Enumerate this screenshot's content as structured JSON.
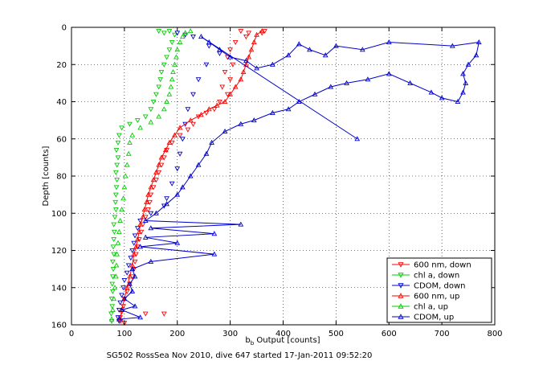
{
  "chart_data": {
    "type": "scatter",
    "xlabel_main": "b",
    "xlabel_sub": "b",
    "xlabel_rest": " Output [counts]",
    "ylabel": "Depth [counts]",
    "caption": "SG502 RossSea Nov 2010, dive 647 started 17-Jan-2011 09:52:20",
    "xlim": [
      0,
      800
    ],
    "ylim": [
      0,
      160
    ],
    "y_reversed": true,
    "xticks": [
      0,
      100,
      200,
      300,
      400,
      500,
      600,
      700,
      800
    ],
    "yticks": [
      0,
      20,
      40,
      60,
      80,
      100,
      120,
      140,
      160
    ],
    "grid": true,
    "legend_position": "bottom-right",
    "series": [
      {
        "name": "600 nm, down",
        "color": "#ff0000",
        "marker": "triangle-down",
        "line": false,
        "points": [
          [
            320,
            2
          ],
          [
            335,
            3
          ],
          [
            360,
            3
          ],
          [
            365,
            2
          ],
          [
            330,
            5
          ],
          [
            310,
            8
          ],
          [
            300,
            12
          ],
          [
            295,
            16
          ],
          [
            305,
            20
          ],
          [
            290,
            24
          ],
          [
            300,
            28
          ],
          [
            285,
            32
          ],
          [
            295,
            36
          ],
          [
            280,
            40
          ],
          [
            270,
            44
          ],
          [
            255,
            46
          ],
          [
            240,
            48
          ],
          [
            230,
            52
          ],
          [
            220,
            55
          ],
          [
            205,
            58
          ],
          [
            190,
            62
          ],
          [
            180,
            66
          ],
          [
            175,
            70
          ],
          [
            170,
            74
          ],
          [
            165,
            78
          ],
          [
            160,
            82
          ],
          [
            155,
            86
          ],
          [
            150,
            90
          ],
          [
            148,
            94
          ],
          [
            145,
            98
          ],
          [
            140,
            102
          ],
          [
            135,
            106
          ],
          [
            132,
            110
          ],
          [
            128,
            114
          ],
          [
            125,
            118
          ],
          [
            122,
            122
          ],
          [
            120,
            126
          ],
          [
            118,
            130
          ],
          [
            115,
            134
          ],
          [
            110,
            138
          ],
          [
            105,
            142
          ],
          [
            100,
            146
          ],
          [
            98,
            150
          ],
          [
            95,
            153
          ],
          [
            92,
            156
          ],
          [
            93,
            158
          ],
          [
            140,
            154
          ],
          [
            175,
            154
          ],
          [
            100,
            159
          ]
        ]
      },
      {
        "name": "chl a, down",
        "color": "#00cc00",
        "marker": "triangle-down",
        "line": false,
        "points": [
          [
            165,
            2
          ],
          [
            175,
            3
          ],
          [
            185,
            2
          ],
          [
            195,
            4
          ],
          [
            190,
            8
          ],
          [
            185,
            12
          ],
          [
            180,
            16
          ],
          [
            175,
            20
          ],
          [
            170,
            24
          ],
          [
            168,
            28
          ],
          [
            165,
            32
          ],
          [
            160,
            36
          ],
          [
            155,
            40
          ],
          [
            150,
            44
          ],
          [
            140,
            48
          ],
          [
            125,
            50
          ],
          [
            110,
            52
          ],
          [
            95,
            54
          ],
          [
            90,
            58
          ],
          [
            88,
            62
          ],
          [
            85,
            66
          ],
          [
            88,
            70
          ],
          [
            86,
            74
          ],
          [
            84,
            78
          ],
          [
            86,
            82
          ],
          [
            85,
            86
          ],
          [
            84,
            90
          ],
          [
            83,
            94
          ],
          [
            84,
            98
          ],
          [
            82,
            102
          ],
          [
            80,
            106
          ],
          [
            81,
            110
          ],
          [
            80,
            114
          ],
          [
            79,
            118
          ],
          [
            80,
            122
          ],
          [
            78,
            126
          ],
          [
            79,
            130
          ],
          [
            78,
            134
          ],
          [
            77,
            138
          ],
          [
            78,
            142
          ],
          [
            76,
            146
          ],
          [
            77,
            150
          ],
          [
            75,
            154
          ],
          [
            76,
            158
          ]
        ]
      },
      {
        "name": "CDOM, down",
        "color": "#0000cc",
        "marker": "triangle-down",
        "line": false,
        "points": [
          [
            200,
            3
          ],
          [
            215,
            4
          ],
          [
            230,
            5
          ],
          [
            260,
            10
          ],
          [
            280,
            14
          ],
          [
            255,
            20
          ],
          [
            240,
            28
          ],
          [
            230,
            36
          ],
          [
            220,
            44
          ],
          [
            215,
            52
          ],
          [
            210,
            60
          ],
          [
            205,
            68
          ],
          [
            200,
            76
          ],
          [
            190,
            84
          ],
          [
            180,
            92
          ],
          [
            175,
            96
          ],
          [
            150,
            100
          ],
          [
            130,
            104
          ],
          [
            125,
            108
          ],
          [
            120,
            112
          ],
          [
            118,
            116
          ],
          [
            115,
            120
          ],
          [
            112,
            124
          ],
          [
            108,
            128
          ],
          [
            105,
            132
          ],
          [
            100,
            136
          ],
          [
            98,
            140
          ],
          [
            95,
            144
          ],
          [
            92,
            148
          ],
          [
            90,
            152
          ],
          [
            88,
            156
          ],
          [
            90,
            158
          ]
        ]
      },
      {
        "name": "600 nm, up",
        "color": "#ff0000",
        "marker": "triangle-up",
        "line": true,
        "points": [
          [
            92,
            157
          ],
          [
            95,
            152
          ],
          [
            100,
            146
          ],
          [
            105,
            140
          ],
          [
            110,
            134
          ],
          [
            115,
            128
          ],
          [
            118,
            122
          ],
          [
            122,
            118
          ],
          [
            125,
            114
          ],
          [
            128,
            110
          ],
          [
            130,
            106
          ],
          [
            135,
            102
          ],
          [
            138,
            98
          ],
          [
            142,
            94
          ],
          [
            145,
            90
          ],
          [
            150,
            86
          ],
          [
            155,
            82
          ],
          [
            160,
            78
          ],
          [
            165,
            74
          ],
          [
            170,
            70
          ],
          [
            178,
            66
          ],
          [
            185,
            62
          ],
          [
            195,
            58
          ],
          [
            205,
            54
          ],
          [
            225,
            50
          ],
          [
            245,
            47
          ],
          [
            260,
            44
          ],
          [
            275,
            42
          ],
          [
            290,
            40
          ],
          [
            300,
            36
          ],
          [
            310,
            32
          ],
          [
            320,
            28
          ],
          [
            325,
            24
          ],
          [
            330,
            20
          ],
          [
            335,
            16
          ],
          [
            340,
            12
          ],
          [
            345,
            8
          ],
          [
            350,
            4
          ],
          [
            360,
            2
          ]
        ]
      },
      {
        "name": "chl a, up",
        "color": "#00cc00",
        "marker": "triangle-up",
        "line": false,
        "points": [
          [
            76,
            157
          ],
          [
            78,
            152
          ],
          [
            80,
            146
          ],
          [
            82,
            140
          ],
          [
            84,
            134
          ],
          [
            85,
            128
          ],
          [
            86,
            122
          ],
          [
            88,
            116
          ],
          [
            90,
            110
          ],
          [
            92,
            104
          ],
          [
            95,
            98
          ],
          [
            98,
            92
          ],
          [
            100,
            86
          ],
          [
            102,
            80
          ],
          [
            105,
            74
          ],
          [
            108,
            68
          ],
          [
            110,
            62
          ],
          [
            115,
            58
          ],
          [
            130,
            54
          ],
          [
            150,
            51
          ],
          [
            165,
            48
          ],
          [
            175,
            44
          ],
          [
            180,
            40
          ],
          [
            185,
            36
          ],
          [
            188,
            32
          ],
          [
            190,
            28
          ],
          [
            192,
            24
          ],
          [
            195,
            20
          ],
          [
            198,
            16
          ],
          [
            200,
            12
          ],
          [
            205,
            8
          ],
          [
            210,
            5
          ],
          [
            215,
            3
          ],
          [
            225,
            2
          ]
        ]
      },
      {
        "name": "CDOM, up",
        "color": "#0000cc",
        "marker": "triangle-up",
        "line": true,
        "points": [
          [
            90,
            157
          ],
          [
            130,
            156
          ],
          [
            95,
            152
          ],
          [
            120,
            150
          ],
          [
            100,
            146
          ],
          [
            115,
            142
          ],
          [
            110,
            138
          ],
          [
            120,
            134
          ],
          [
            115,
            130
          ],
          [
            150,
            126
          ],
          [
            270,
            122
          ],
          [
            130,
            118
          ],
          [
            200,
            116
          ],
          [
            140,
            113
          ],
          [
            270,
            111
          ],
          [
            150,
            108
          ],
          [
            320,
            106
          ],
          [
            140,
            104
          ],
          [
            160,
            100
          ],
          [
            180,
            95
          ],
          [
            200,
            90
          ],
          [
            210,
            86
          ],
          [
            225,
            80
          ],
          [
            240,
            74
          ],
          [
            255,
            68
          ],
          [
            265,
            62
          ],
          [
            290,
            56
          ],
          [
            320,
            52
          ],
          [
            345,
            50
          ],
          [
            380,
            46
          ],
          [
            410,
            44
          ],
          [
            430,
            40
          ],
          [
            460,
            36
          ],
          [
            490,
            32
          ],
          [
            520,
            30
          ],
          [
            560,
            28
          ],
          [
            600,
            25
          ],
          [
            640,
            30
          ],
          [
            680,
            35
          ],
          [
            700,
            38
          ],
          [
            730,
            40
          ],
          [
            740,
            35
          ],
          [
            745,
            30
          ],
          [
            740,
            25
          ],
          [
            750,
            20
          ],
          [
            765,
            15
          ],
          [
            770,
            8
          ],
          [
            720,
            10
          ],
          [
            600,
            8
          ],
          [
            550,
            12
          ],
          [
            500,
            10
          ],
          [
            480,
            15
          ],
          [
            450,
            12
          ],
          [
            430,
            9
          ],
          [
            410,
            15
          ],
          [
            380,
            20
          ],
          [
            350,
            22
          ],
          [
            330,
            18
          ],
          [
            300,
            16
          ],
          [
            280,
            12
          ],
          [
            260,
            8
          ],
          [
            245,
            5
          ],
          [
            540,
            60
          ]
        ]
      }
    ]
  }
}
